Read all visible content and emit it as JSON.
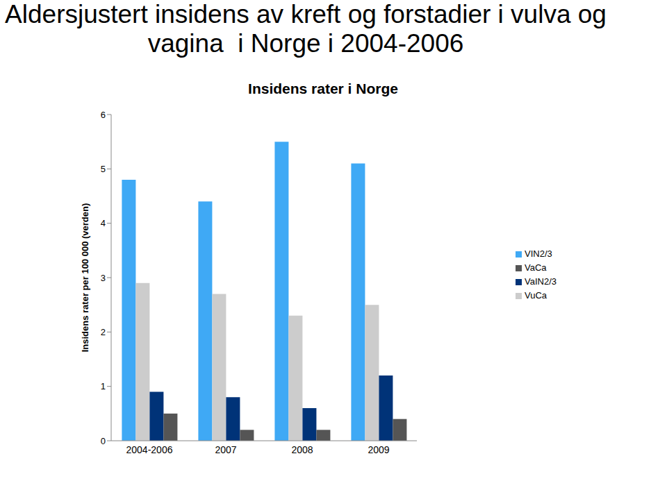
{
  "chart_data": {
    "type": "bar",
    "title": "Aldersjustert insidens av kreft og forstadier i vulva og vagina  i Norge i 2004-2006",
    "subtitle": "Insidens rater i Norge",
    "y_label": "Insidens rater per 100 000 (verden)",
    "categories": [
      "2004-2006",
      "2007",
      "2008",
      "2009"
    ],
    "series": [
      {
        "name": "VIN2/3",
        "color": "#3fa9f5",
        "values": [
          4.8,
          4.4,
          5.5,
          5.1
        ]
      },
      {
        "name": "VuCa",
        "color": "#cccccc",
        "values": [
          2.9,
          2.7,
          2.3,
          2.5
        ]
      },
      {
        "name": "VaIN2/3",
        "color": "#003378",
        "values": [
          0.9,
          0.8,
          0.6,
          1.2
        ]
      },
      {
        "name": "VaCa",
        "color": "#555555",
        "values": [
          0.5,
          0.2,
          0.2,
          0.4
        ]
      }
    ],
    "ylim": [
      0,
      6
    ],
    "yticks": [
      0,
      1,
      2,
      3,
      4,
      5,
      6
    ],
    "grid": false,
    "legend": "right"
  }
}
